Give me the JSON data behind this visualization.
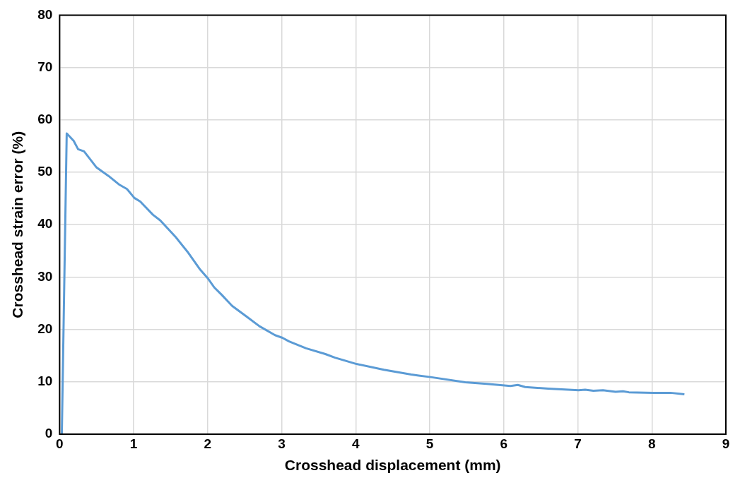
{
  "chart_data": {
    "type": "line",
    "xlabel": "Crosshead displacement (mm)",
    "ylabel": "Crosshead strain error (%)",
    "xlim": [
      0,
      9
    ],
    "xticks": [
      0,
      1,
      2,
      3,
      4,
      5,
      6,
      7,
      8,
      9
    ],
    "ylim": [
      0,
      80
    ],
    "yticks": [
      0,
      10,
      20,
      30,
      40,
      50,
      60,
      70,
      80
    ],
    "grid": true,
    "legend": false,
    "marker": "none",
    "line_style": "solid",
    "series": [
      {
        "color": "#5b9bd5",
        "x": [
          0.03,
          0.096,
          0.19,
          0.25,
          0.33,
          0.5,
          0.66,
          0.81,
          0.91,
          1.01,
          1.09,
          1.26,
          1.36,
          1.57,
          1.74,
          1.9,
          2.0,
          2.09,
          2.19,
          2.33,
          2.53,
          2.7,
          2.91,
          3.01,
          3.1,
          3.33,
          3.59,
          3.72,
          4.01,
          4.38,
          4.75,
          4.85,
          5.01,
          5.48,
          5.77,
          6.09,
          6.19,
          6.29,
          6.6,
          7.01,
          7.1,
          7.21,
          7.34,
          7.51,
          7.61,
          7.69,
          8.02,
          8.25,
          8.44
        ],
        "values": [
          0,
          57.4,
          56.0,
          54.4,
          54.0,
          50.9,
          49.3,
          47.6,
          46.8,
          45.1,
          44.4,
          41.9,
          40.8,
          37.6,
          34.6,
          31.4,
          29.8,
          28.0,
          26.6,
          24.5,
          22.4,
          20.6,
          18.9,
          18.4,
          17.7,
          16.4,
          15.3,
          14.6,
          13.4,
          12.3,
          11.4,
          11.2,
          10.9,
          9.9,
          9.6,
          9.2,
          9.4,
          9.0,
          8.7,
          8.4,
          8.5,
          8.3,
          8.4,
          8.1,
          8.2,
          8.0,
          7.9,
          7.9,
          7.6
        ]
      }
    ]
  }
}
